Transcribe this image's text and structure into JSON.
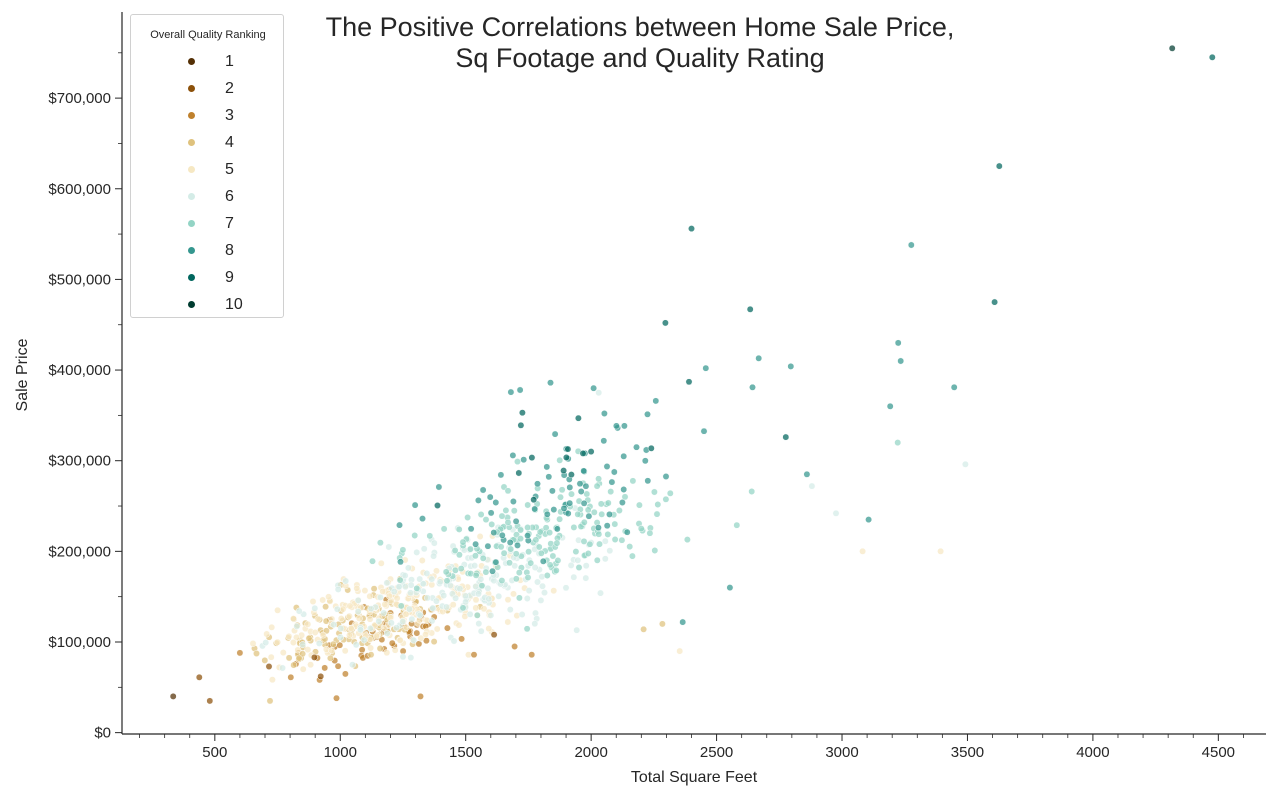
{
  "chart_data": {
    "type": "scatter",
    "title": [
      "The Positive Correlations between Home Sale Price,",
      "Sq Footage and Quality Rating"
    ],
    "xlabel": "Total Square Feet",
    "ylabel": "Sale Price",
    "xlim": [
      130,
      4690
    ],
    "ylim": [
      -1500,
      795000
    ],
    "xticks": [
      500,
      1000,
      1500,
      2000,
      2500,
      3000,
      3500,
      4000,
      4500
    ],
    "xtick_labels": [
      "500",
      "1000",
      "1500",
      "2000",
      "2500",
      "3000",
      "3500",
      "4000",
      "4500"
    ],
    "yticks": [
      0,
      100000,
      200000,
      300000,
      400000,
      500000,
      600000,
      700000
    ],
    "ytick_labels": [
      "$0",
      "$100,000",
      "$200,000",
      "$300,000",
      "$400,000",
      "$500,000",
      "$600,000",
      "$700,000"
    ],
    "grid": false,
    "legend": {
      "title": "Overall Quality Ranking",
      "position": "top-left",
      "entries": [
        {
          "label": "1",
          "color": "#543005"
        },
        {
          "label": "2",
          "color": "#8c510a"
        },
        {
          "label": "3",
          "color": "#bf812d"
        },
        {
          "label": "4",
          "color": "#dfc27d"
        },
        {
          "label": "5",
          "color": "#f6e8c3"
        },
        {
          "label": "6",
          "color": "#d4ece7"
        },
        {
          "label": "7",
          "color": "#93d4c5"
        },
        {
          "label": "8",
          "color": "#35978f"
        },
        {
          "label": "9",
          "color": "#01665e"
        },
        {
          "label": "10",
          "color": "#003c30"
        }
      ]
    },
    "marked_points": [
      {
        "q": 1,
        "x": 334,
        "y": 40000
      },
      {
        "q": 2,
        "x": 438,
        "y": 61000
      },
      {
        "q": 2,
        "x": 480,
        "y": 35000
      },
      {
        "q": 2,
        "x": 897,
        "y": 83000
      },
      {
        "q": 2,
        "x": 922,
        "y": 62000
      },
      {
        "q": 3,
        "x": 985,
        "y": 38000
      },
      {
        "q": 3,
        "x": 1320,
        "y": 40000
      },
      {
        "q": 2,
        "x": 716,
        "y": 73000
      },
      {
        "q": 3,
        "x": 803,
        "y": 61000
      },
      {
        "q": 3,
        "x": 600,
        "y": 88000
      },
      {
        "q": 4,
        "x": 720,
        "y": 35000
      },
      {
        "q": 10,
        "x": 4316,
        "y": 755000
      },
      {
        "q": 9,
        "x": 4476,
        "y": 745000
      },
      {
        "q": 9,
        "x": 3627,
        "y": 625000
      },
      {
        "q": 9,
        "x": 2400,
        "y": 556000
      },
      {
        "q": 8,
        "x": 3276,
        "y": 538000
      },
      {
        "q": 9,
        "x": 3608,
        "y": 475000
      },
      {
        "q": 9,
        "x": 2634,
        "y": 467000
      },
      {
        "q": 9,
        "x": 2296,
        "y": 452000
      },
      {
        "q": 8,
        "x": 3224,
        "y": 430000
      },
      {
        "q": 8,
        "x": 3234,
        "y": 410000
      },
      {
        "q": 8,
        "x": 2668,
        "y": 413000
      },
      {
        "q": 8,
        "x": 2796,
        "y": 404000
      },
      {
        "q": 8,
        "x": 2457,
        "y": 402000
      },
      {
        "q": 9,
        "x": 2390,
        "y": 387000
      },
      {
        "q": 8,
        "x": 2643,
        "y": 381000
      },
      {
        "q": 8,
        "x": 3447,
        "y": 381000
      },
      {
        "q": 8,
        "x": 3192,
        "y": 360000
      },
      {
        "q": 7,
        "x": 3222,
        "y": 320000
      },
      {
        "q": 6,
        "x": 3492,
        "y": 296000
      },
      {
        "q": 8,
        "x": 3106,
        "y": 235000
      },
      {
        "q": 6,
        "x": 2976,
        "y": 242000
      },
      {
        "q": 5,
        "x": 3082,
        "y": 200000
      },
      {
        "q": 5,
        "x": 3393,
        "y": 200000
      },
      {
        "q": 8,
        "x": 1838,
        "y": 386000
      },
      {
        "q": 8,
        "x": 1717,
        "y": 378000
      },
      {
        "q": 8,
        "x": 2010,
        "y": 380000
      },
      {
        "q": 6,
        "x": 2030,
        "y": 375000
      },
      {
        "q": 9,
        "x": 1720,
        "y": 339000
      },
      {
        "q": 9,
        "x": 2000,
        "y": 310000
      },
      {
        "q": 9,
        "x": 2776,
        "y": 326000
      },
      {
        "q": 8,
        "x": 2860,
        "y": 285000
      },
      {
        "q": 7,
        "x": 2640,
        "y": 266000
      },
      {
        "q": 6,
        "x": 2880,
        "y": 272000
      },
      {
        "q": 8,
        "x": 2553,
        "y": 160000
      },
      {
        "q": 8,
        "x": 2365,
        "y": 122000
      },
      {
        "q": 5,
        "x": 2353,
        "y": 90000
      },
      {
        "q": 4,
        "x": 2284,
        "y": 120000
      },
      {
        "q": 4,
        "x": 2209,
        "y": 114000
      },
      {
        "q": 5,
        "x": 1511,
        "y": 86000
      },
      {
        "q": 3,
        "x": 1533,
        "y": 86000
      },
      {
        "q": 3,
        "x": 1763,
        "y": 86000
      },
      {
        "q": 3,
        "x": 1695,
        "y": 95000
      },
      {
        "q": 2,
        "x": 1613,
        "y": 108000
      }
    ]
  }
}
